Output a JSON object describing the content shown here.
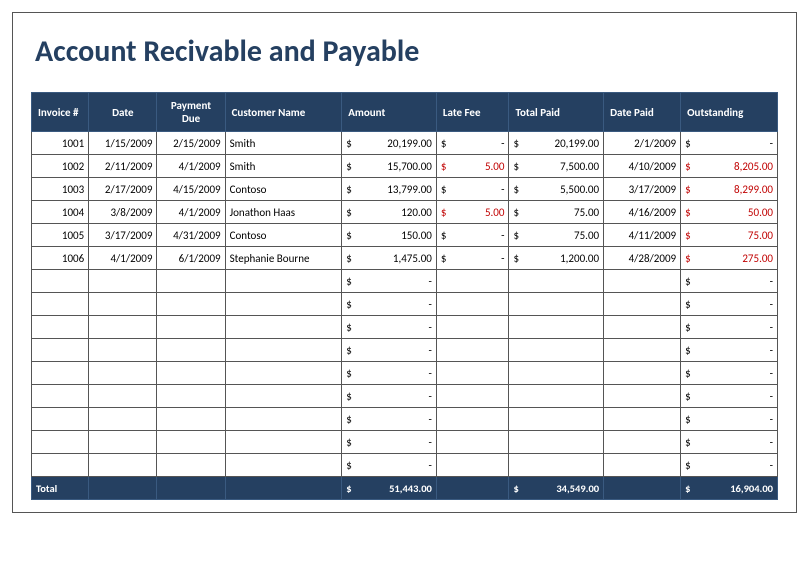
{
  "title": "Account Recivable and Payable",
  "colors": {
    "header_bg": "#254061",
    "header_text": "#ffffff",
    "title_text": "#254061",
    "border": "#555555",
    "red": "#c00000"
  },
  "columns": [
    "Invoice #",
    "Date",
    "Payment Due",
    "Customer Name",
    "Amount",
    "Late Fee",
    "Total Paid",
    "Date Paid",
    "Outstanding"
  ],
  "rows": [
    {
      "invoice": "1001",
      "date": "1/15/2009",
      "payment_due": "2/15/2009",
      "customer": "Smith",
      "amount": "20,199.00",
      "late_fee": "-",
      "total_paid": "20,199.00",
      "date_paid": "2/1/2009",
      "outstanding": "-",
      "out_red": false
    },
    {
      "invoice": "1002",
      "date": "2/11/2009",
      "payment_due": "4/1/2009",
      "customer": "Smith",
      "amount": "15,700.00",
      "late_fee": "5.00",
      "late_red": true,
      "total_paid": "7,500.00",
      "date_paid": "4/10/2009",
      "outstanding": "8,205.00",
      "out_red": true
    },
    {
      "invoice": "1003",
      "date": "2/17/2009",
      "payment_due": "4/15/2009",
      "customer": "Contoso",
      "amount": "13,799.00",
      "late_fee": "-",
      "total_paid": "5,500.00",
      "date_paid": "3/17/2009",
      "outstanding": "8,299.00",
      "out_red": true
    },
    {
      "invoice": "1004",
      "date": "3/8/2009",
      "payment_due": "4/1/2009",
      "customer": "Jonathon Haas",
      "amount": "120.00",
      "late_fee": "5.00",
      "late_red": true,
      "total_paid": "75.00",
      "date_paid": "4/16/2009",
      "outstanding": "50.00",
      "out_red": true
    },
    {
      "invoice": "1005",
      "date": "3/17/2009",
      "payment_due": "4/31/2009",
      "customer": "Contoso",
      "amount": "150.00",
      "late_fee": "-",
      "total_paid": "75.00",
      "date_paid": "4/11/2009",
      "outstanding": "75.00",
      "out_red": true
    },
    {
      "invoice": "1006",
      "date": "4/1/2009",
      "payment_due": "6/1/2009",
      "customer": "Stephanie Bourne",
      "amount": "1,475.00",
      "late_fee": "-",
      "total_paid": "1,200.00",
      "date_paid": "4/28/2009",
      "outstanding": "275.00",
      "out_red": true
    }
  ],
  "empty_rows": 9,
  "totals": {
    "label": "Total",
    "amount": "51,443.00",
    "total_paid": "34,549.00",
    "outstanding": "16,904.00"
  }
}
